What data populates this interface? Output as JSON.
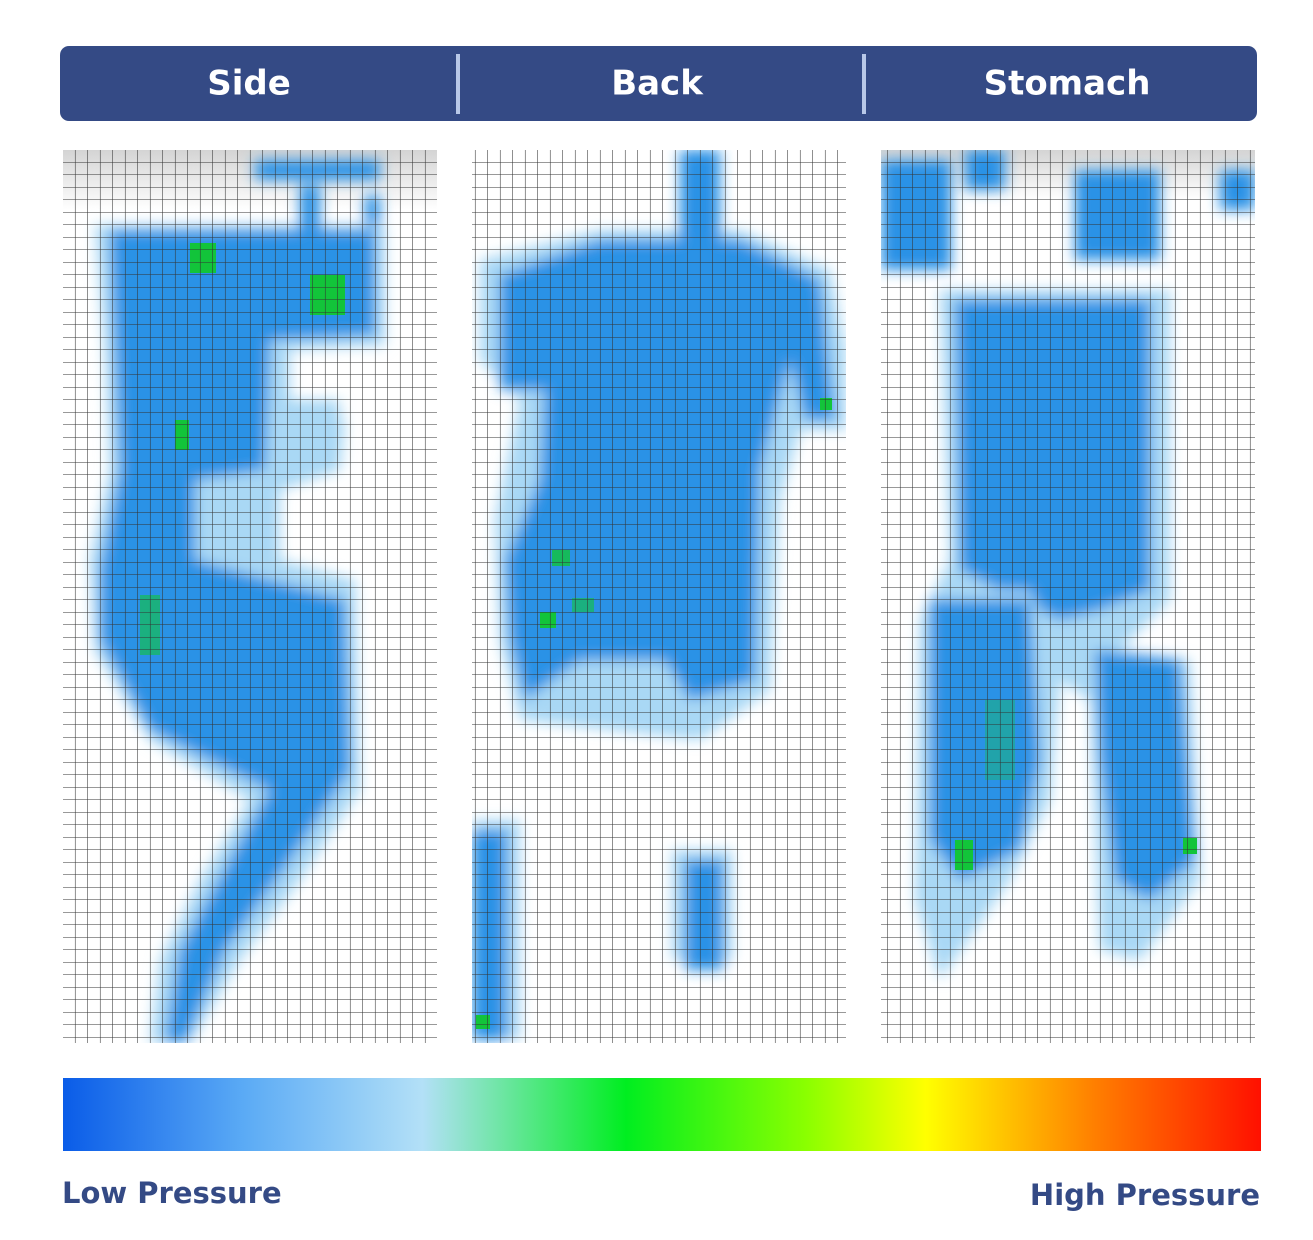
{
  "header": {
    "tabs": [
      "Side",
      "Back",
      "Stomach"
    ]
  },
  "legend": {
    "low_label": "Low Pressure",
    "high_label": "High Pressure"
  }
}
